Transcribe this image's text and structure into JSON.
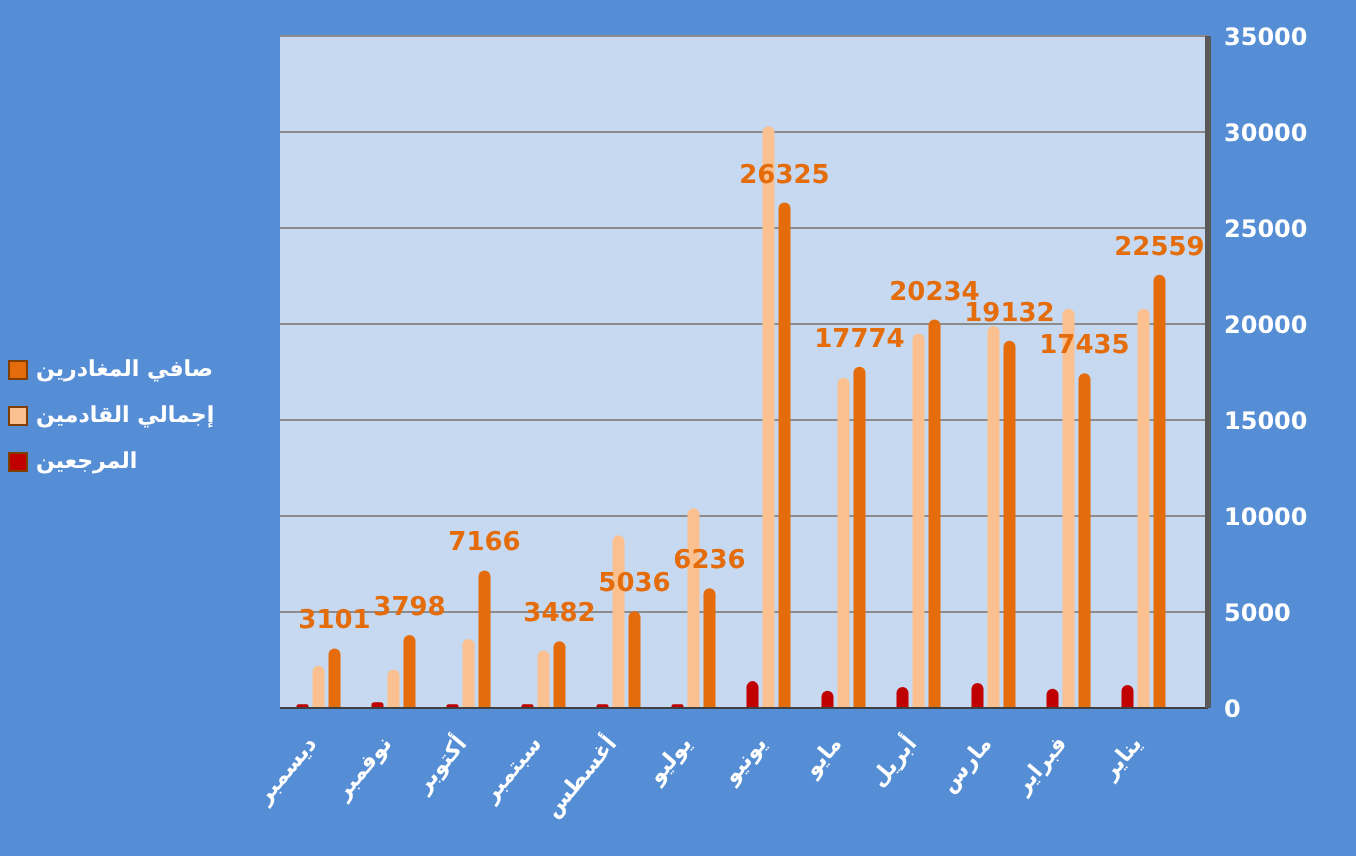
{
  "chart_data": {
    "type": "bar",
    "categories": [
      "ديسمبر",
      "نوفمبر",
      "أكتوبر",
      "سبتمبر",
      "أغسطس",
      "يوليو",
      "يونيو",
      "مايو",
      "أبريل",
      "مارس",
      "فبراير",
      "يناير"
    ],
    "series": [
      {
        "name": "المرجعين",
        "color": "#c00000",
        "values": [
          200,
          300,
          200,
          200,
          200,
          200,
          1400,
          900,
          1100,
          1300,
          1000,
          1200
        ]
      },
      {
        "name": "إجمالي القادمين",
        "color": "#fac090",
        "values": [
          2200,
          2000,
          3600,
          3000,
          9000,
          10400,
          30300,
          17200,
          19500,
          19900,
          20800,
          20800
        ]
      },
      {
        "name": "صافي المغادرين",
        "color": "#e46c0a",
        "values": [
          3101,
          3798,
          7166,
          3482,
          5036,
          6236,
          26325,
          17774,
          20234,
          19132,
          17435,
          22559
        ],
        "value_labels": [
          "3101",
          "3798",
          "7166",
          "3482",
          "5036",
          "6236",
          "26325",
          "17774",
          "20234",
          "19132",
          "17435",
          "22559"
        ]
      }
    ],
    "ylim": [
      0,
      35000
    ],
    "yticks": [
      0,
      5000,
      10000,
      15000,
      20000,
      25000,
      30000,
      35000
    ],
    "grid": "y",
    "legend": "left"
  }
}
